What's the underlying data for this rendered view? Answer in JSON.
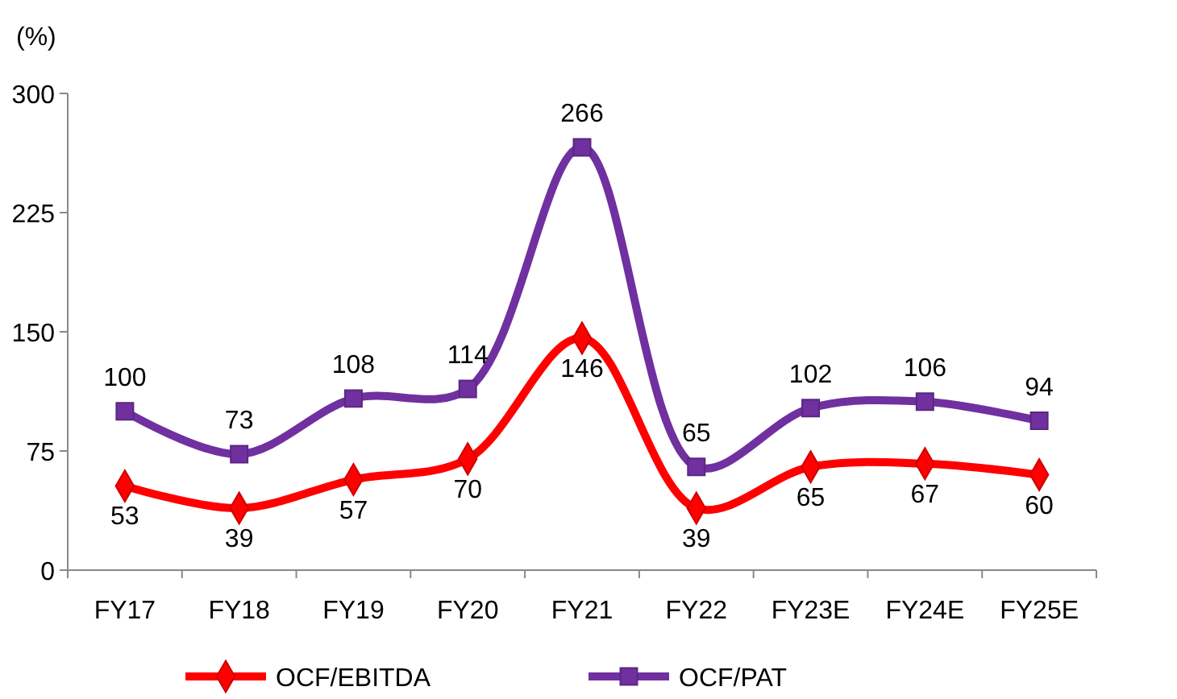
{
  "chart_data": {
    "type": "line",
    "ylabel": "(%)",
    "categories": [
      "FY17",
      "FY18",
      "FY19",
      "FY20",
      "FY21",
      "FY22",
      "FY23E",
      "FY24E",
      "FY25E"
    ],
    "series": [
      {
        "name": "OCF/EBITDA",
        "color": "#ff0000",
        "marker": "diamond",
        "values": [
          53,
          39,
          57,
          70,
          146,
          39,
          65,
          67,
          60
        ]
      },
      {
        "name": "OCF/PAT",
        "color": "#7030a0",
        "marker": "square",
        "values": [
          100,
          73,
          108,
          114,
          266,
          65,
          102,
          106,
          94
        ]
      }
    ],
    "ylim": [
      0,
      300
    ],
    "yticks": [
      0,
      75,
      150,
      225,
      300
    ],
    "grid": false,
    "legend": "bottom",
    "data_labels": true
  }
}
